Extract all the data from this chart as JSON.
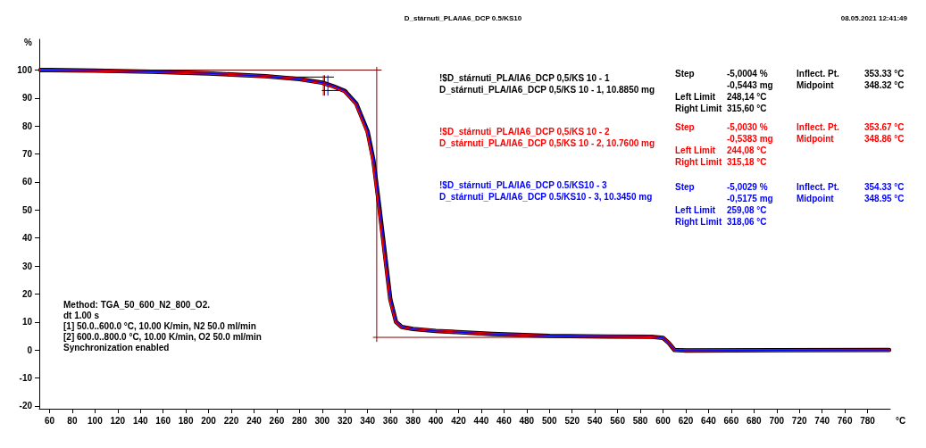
{
  "chart_data": {
    "type": "line",
    "title": "D_stárnutí_PLA/IA6_DCP 0.5/KS10",
    "subtitle": "08.05.2021 12:41:49",
    "xlabel": "°C",
    "ylabel": "%",
    "xlim": [
      51,
      800
    ],
    "ylim": [
      -21,
      111
    ],
    "xticks": [
      60,
      80,
      100,
      120,
      140,
      160,
      180,
      200,
      220,
      240,
      260,
      280,
      300,
      320,
      340,
      360,
      380,
      400,
      420,
      440,
      460,
      480,
      500,
      520,
      540,
      560,
      580,
      600,
      620,
      640,
      660,
      680,
      700,
      720,
      740,
      760,
      780
    ],
    "yticks": [
      -20,
      -10,
      0,
      10,
      20,
      30,
      40,
      50,
      60,
      70,
      80,
      90,
      100
    ],
    "grid": false,
    "legend": "top",
    "marker": "none",
    "series": [
      {
        "name": "!$D_stárnuti_PLA/IA6_DCP 0,5/KS 10 - 1\nD_stárnuti_PLA/IA6_DCP 0,5/KS 10 - 1, 10.8850 mg",
        "color": "#000000",
        "x": [
          52,
          60,
          100,
          150,
          200,
          250,
          280,
          300,
          310,
          320,
          330,
          340,
          345,
          350,
          355,
          360,
          365,
          370,
          380,
          400,
          450,
          500,
          550,
          590,
          600,
          605,
          610,
          620,
          700,
          799
        ],
        "values": [
          100,
          100,
          99.8,
          99.4,
          98.8,
          97.8,
          96.8,
          95.5,
          94.2,
          92.5,
          88,
          78,
          68,
          52,
          35,
          18,
          10,
          8.2,
          7.5,
          6.8,
          5.7,
          5,
          4.8,
          4.7,
          4.3,
          2.5,
          0,
          -0.2,
          -0.1,
          0
        ]
      },
      {
        "name": "!$D_stárnuti_PLA/IA6_DCP 0,5/KS 10 - 2\nD_stárnuti_PLA/IA6_DCP 0,5/KS 10 - 2, 10.7600 mg",
        "color": "#ff0000",
        "x": [
          52,
          60,
          100,
          150,
          200,
          250,
          280,
          300,
          310,
          320,
          330,
          340,
          345,
          350,
          355,
          360,
          365,
          370,
          380,
          400,
          450,
          500,
          550,
          590,
          600,
          605,
          610,
          620,
          700,
          799
        ],
        "values": [
          100,
          100,
          99.8,
          99.4,
          98.8,
          97.8,
          96.8,
          95.4,
          94.1,
          92.4,
          87.8,
          77.5,
          67,
          51,
          34,
          17.5,
          10,
          8.2,
          7.5,
          6.8,
          5.7,
          5,
          4.8,
          4.7,
          4.3,
          2.5,
          0,
          -0.2,
          -0.1,
          0
        ]
      },
      {
        "name": "!$D_stárnuti_PLA/IA6_DCP 0.5/KS10 - 3\nD_stárnuti_PLA/IA6_DCP 0.5/KS10 - 3, 10.3450 mg",
        "color": "#0000ff",
        "x": [
          52,
          60,
          100,
          150,
          200,
          250,
          280,
          300,
          310,
          320,
          330,
          340,
          345,
          350,
          355,
          360,
          365,
          370,
          380,
          400,
          450,
          500,
          550,
          590,
          600,
          605,
          610,
          620,
          700,
          799
        ],
        "values": [
          100,
          100,
          99.8,
          99.4,
          98.8,
          97.8,
          96.8,
          95.5,
          94.3,
          92.6,
          88.2,
          78.5,
          69,
          53,
          36,
          18.5,
          10.2,
          8.2,
          7.5,
          6.8,
          5.7,
          5,
          4.8,
          4.7,
          4.3,
          2.5,
          0,
          -0.2,
          -0.1,
          0
        ]
      },
      {
        "color": "#800000",
        "x": [
          52,
          352
        ],
        "values": [
          100,
          100
        ]
      },
      {
        "color": "#800000",
        "x": [
          348,
          348
        ],
        "values": [
          101,
          3
        ]
      },
      {
        "color": "#800000",
        "x": [
          345,
          592
        ],
        "values": [
          4.5,
          4.5
        ]
      },
      {
        "color": "#000000",
        "x": [
          250,
          310
        ],
        "values": [
          97.5,
          97.5
        ]
      },
      {
        "color": "#000000",
        "x": [
          302,
          302
        ],
        "values": [
          98,
          91
        ]
      },
      {
        "color": "#ff0000",
        "x": [
          301,
          301
        ],
        "values": [
          98,
          91
        ]
      },
      {
        "color": "#0000ff",
        "x": [
          305,
          305
        ],
        "values": [
          98,
          91
        ]
      },
      {
        "color": "#000000",
        "x": [
          300,
          322
        ],
        "values": [
          92.7,
          92.7
        ]
      }
    ],
    "annotations": [
      "Method: TGA_50_600_N2_800_O2.\ndt 1.00 s\n[1] 50.0..600.0 °C, 10.00 K/min, N2 50.0 ml/min\n[2] 600.0..800.0 °C, 10.00 K/min, O2 50.0 ml/min\nSynchronization enabled",
      "Step\n\nLeft Limit\nRight Limit",
      "-5,0004 %\n-0,5443 mg\n248,14 °C\n315,60 °C",
      "Inflect. Pt.\nMidpoint",
      "353.33 °C\n348.32 °C",
      "Step\n\nLeft Limit\nRight Limit",
      "-5,0030 %\n-0,5383 mg\n244,08 °C\n315,18 °C",
      "Inflect. Pt.\nMidpoint",
      "353.67 °C\n348.86 °C",
      "Step\n\nLeft Limit\nRight Limit",
      "-5,0029 %\n-0,5175 mg\n259,08 °C\n318,06 °C",
      "Inflect. Pt.\nMidpoint",
      "354.33 °C\n348.95 °C"
    ]
  }
}
